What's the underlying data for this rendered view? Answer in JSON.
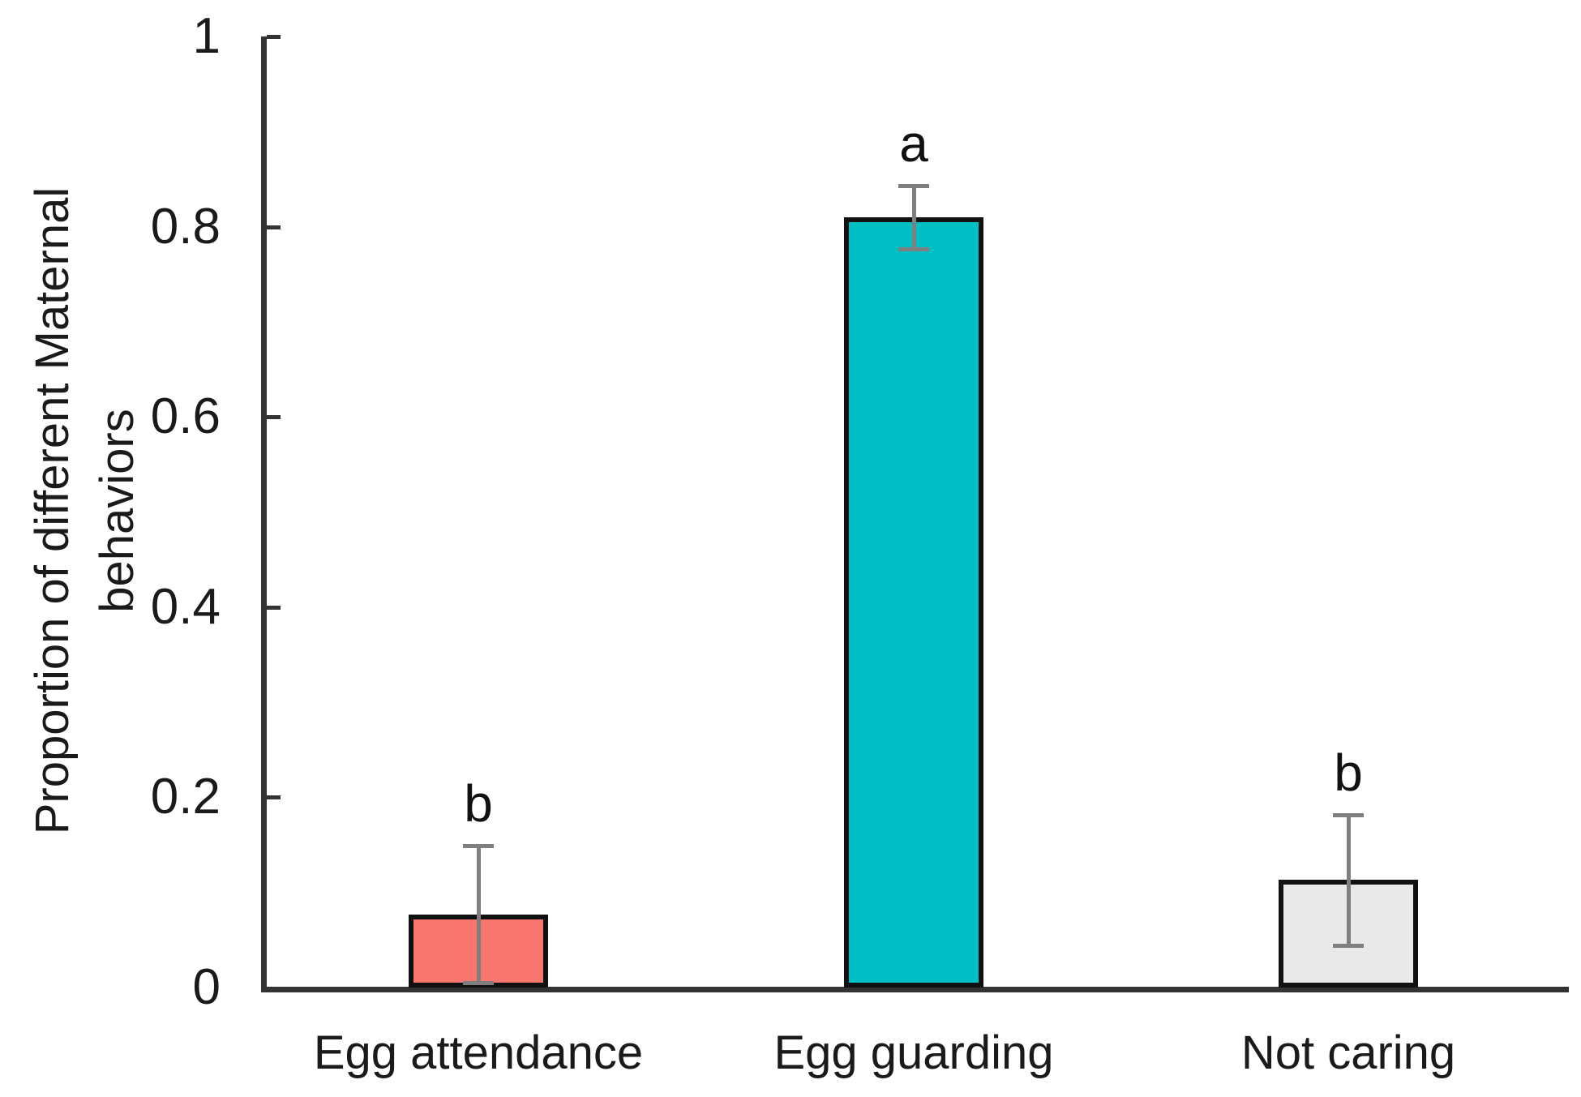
{
  "chart_data": {
    "type": "bar",
    "title": "",
    "xlabel": "",
    "ylabel": "Proportion of different Maternal behaviors",
    "ylabel_lines": [
      "Proportion of different Maternal",
      "behaviors"
    ],
    "categories": [
      "Egg attendance",
      "Egg guarding",
      "Not caring"
    ],
    "values": [
      0.077,
      0.81,
      0.113
    ],
    "errors": [
      0.072,
      0.033,
      0.069
    ],
    "sig_letters": [
      "b",
      "a",
      "b"
    ],
    "bar_colors": [
      "#F8766D",
      "#00BFC4",
      "#E9E9E9"
    ],
    "bar_border_color": "#111111",
    "error_bar_color": "#7f7f7f",
    "axis_color": "#333333",
    "ylim": [
      0,
      1
    ],
    "yticks": [
      0,
      0.2,
      0.4,
      0.6,
      0.8,
      1
    ],
    "grid": false,
    "legend": false
  }
}
